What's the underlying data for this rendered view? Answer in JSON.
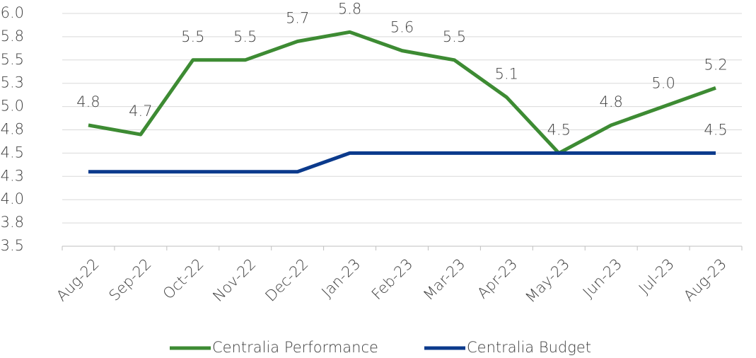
{
  "chart_data": {
    "type": "line",
    "categories": [
      "Aug-22",
      "Sep-22",
      "Oct-22",
      "Nov-22",
      "Dec-22",
      "Jan-23",
      "Feb-23",
      "Mar-23",
      "Apr-23",
      "May-23",
      "Jun-23",
      "Jul-23",
      "Aug-23"
    ],
    "series": [
      {
        "name": "Centralia Performance",
        "color": "#3d8b33",
        "values": [
          4.8,
          4.7,
          5.5,
          5.5,
          5.7,
          5.8,
          5.6,
          5.5,
          5.1,
          4.5,
          4.8,
          5.0,
          5.2
        ],
        "value_labels": [
          "4.8",
          "4.7",
          "5.5",
          "5.5",
          "5.7",
          "5.8",
          "5.6",
          "5.5",
          "5.1",
          "4.5",
          "4.8",
          "5.0",
          "5.2"
        ]
      },
      {
        "name": "Centralia Budget",
        "color": "#0b3a8c",
        "values": [
          4.3,
          4.3,
          4.3,
          4.3,
          4.3,
          4.5,
          4.5,
          4.5,
          4.5,
          4.5,
          4.5,
          4.5,
          4.5
        ],
        "value_labels": [
          null,
          null,
          null,
          null,
          null,
          null,
          null,
          null,
          null,
          null,
          null,
          null,
          "4.5"
        ]
      }
    ],
    "ylim": [
      3.5,
      6.0
    ],
    "yticks": [
      3.5,
      {
        "value": 3.75,
        "label": "3.8"
      },
      {
        "value": 4.0,
        "label": "4.0"
      },
      {
        "value": 4.25,
        "label": "4.3"
      },
      4.5,
      {
        "value": 4.75,
        "label": "4.8"
      },
      {
        "value": 5.0,
        "label": "5.0"
      },
      {
        "value": 5.25,
        "label": "5.3"
      },
      5.5,
      {
        "value": 5.75,
        "label": "5.8"
      },
      {
        "value": 6.0,
        "label": "6.0"
      }
    ],
    "grid": true,
    "legend": "bottom"
  }
}
